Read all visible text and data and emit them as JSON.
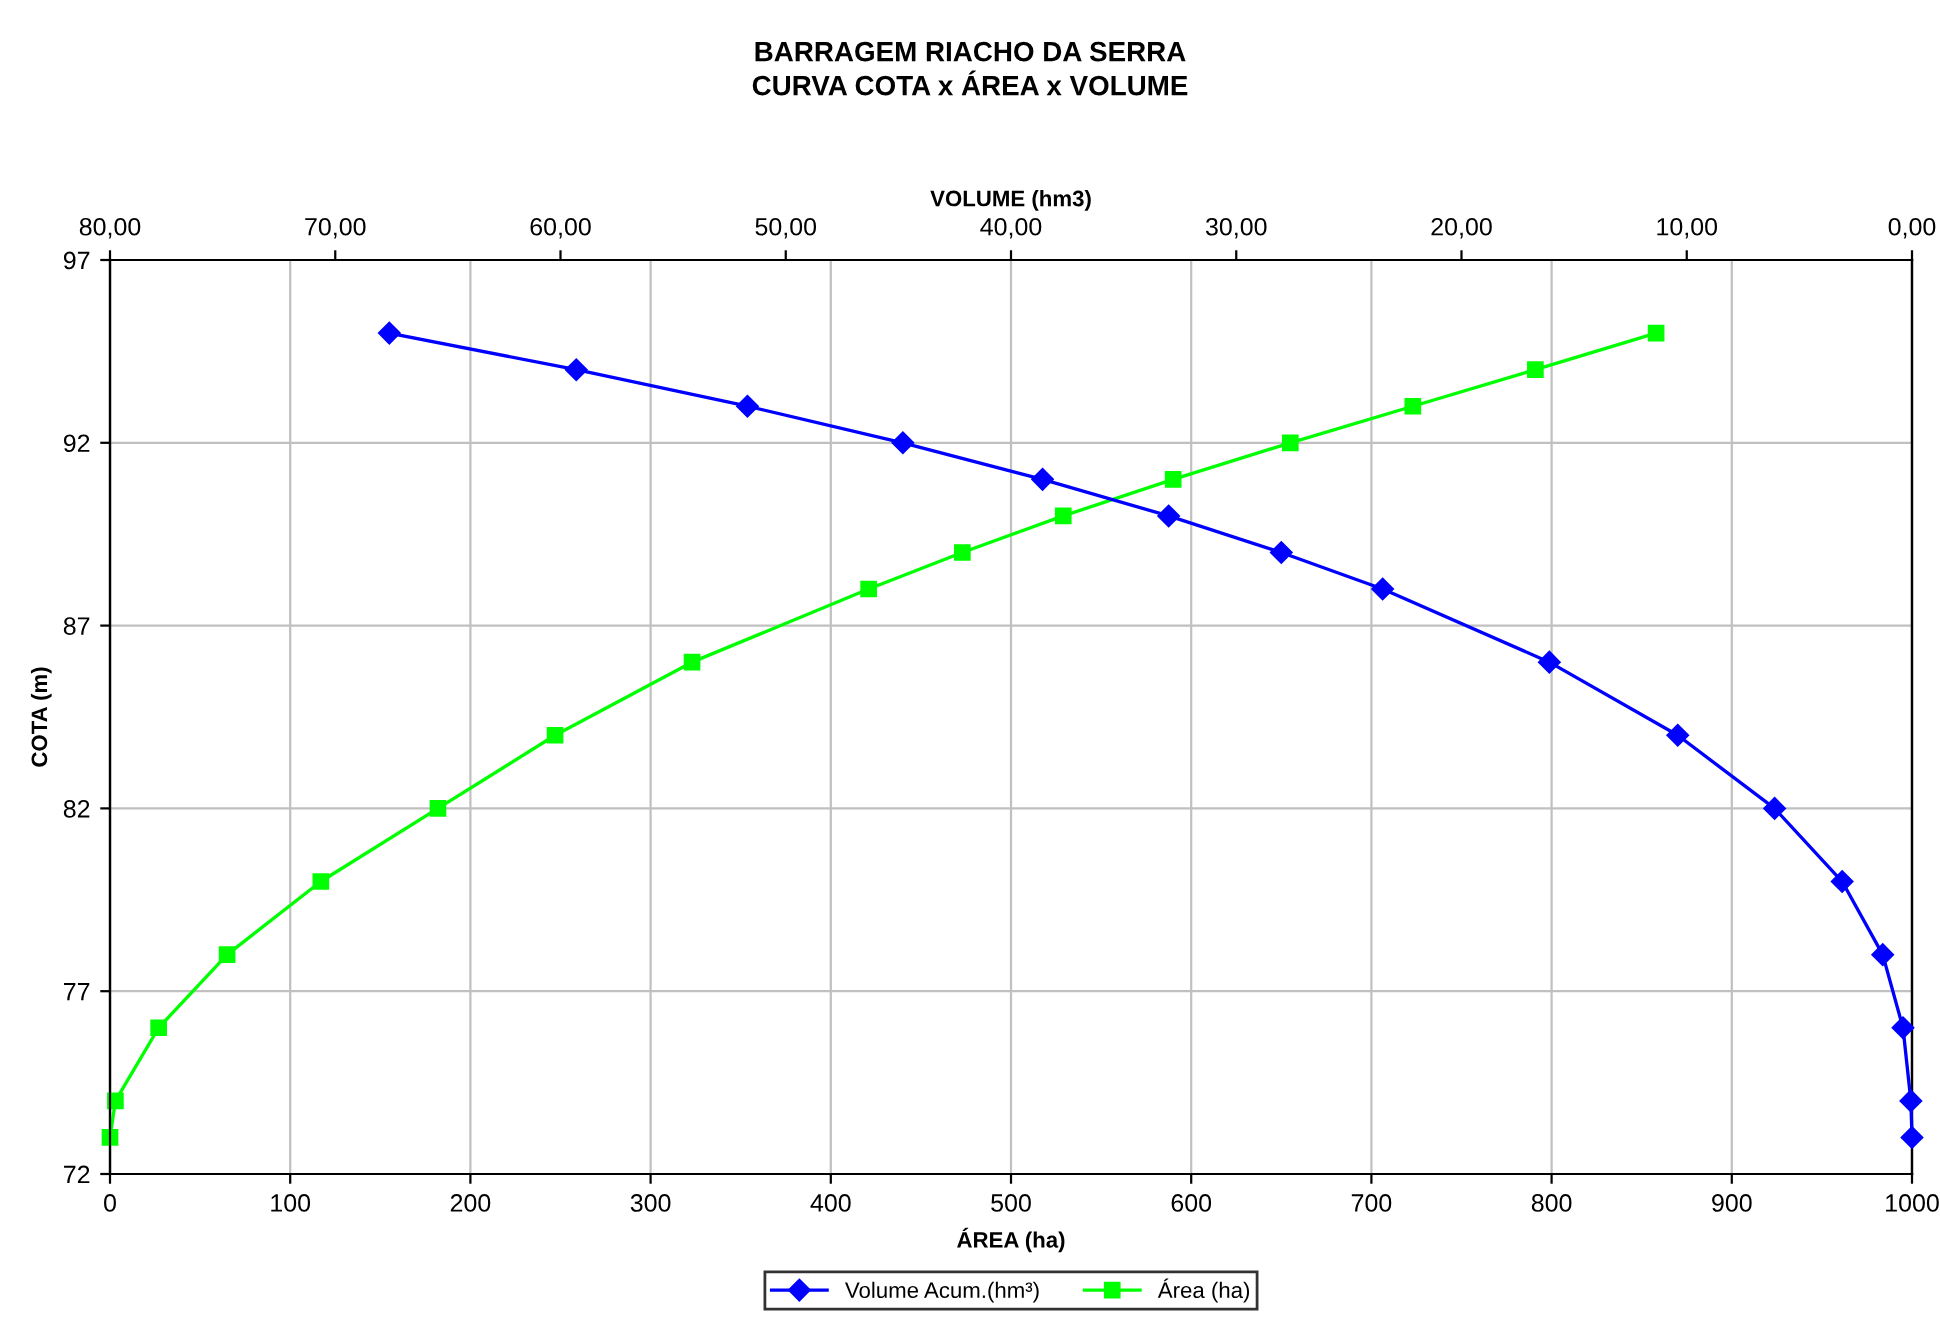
{
  "chart_data": {
    "type": "line",
    "title": "BARRAGEM RIACHO DA SERRA",
    "subtitle": "CURVA COTA x ÁREA x VOLUME",
    "xlabel": "ÁREA (ha)",
    "x2label": "VOLUME (hm3)",
    "ylabel": "COTA (m)",
    "xlim": [
      0,
      1000
    ],
    "xticks": [
      0,
      100,
      200,
      300,
      400,
      500,
      600,
      700,
      800,
      900,
      1000
    ],
    "x2lim": [
      80,
      0
    ],
    "x2ticks": [
      {
        "value": 80,
        "label": "80,00"
      },
      {
        "value": 70,
        "label": "70,00"
      },
      {
        "value": 60,
        "label": "60,00"
      },
      {
        "value": 50,
        "label": "50,00"
      },
      {
        "value": 40,
        "label": "40,00"
      },
      {
        "value": 30,
        "label": "30,00"
      },
      {
        "value": 20,
        "label": "20,00"
      },
      {
        "value": 10,
        "label": "10,00"
      },
      {
        "value": 0,
        "label": "0,00"
      }
    ],
    "ylim": [
      72,
      97
    ],
    "yticks": [
      72,
      77,
      82,
      87,
      92,
      97
    ],
    "grid": true,
    "legend": "bottom",
    "series": [
      {
        "name": "Volume Acum.(hm³)",
        "color": "#0000ff",
        "axis": "x2",
        "marker": "diamond",
        "x": [
          67.6,
          59.3,
          51.7,
          44.8,
          38.6,
          33.0,
          28.0,
          23.5,
          16.1,
          10.4,
          6.1,
          3.1,
          1.3,
          0.4,
          0.05,
          0.0
        ],
        "values": [
          95,
          94,
          93,
          92,
          91,
          90,
          89,
          88,
          86,
          84,
          82,
          80,
          78,
          76,
          74,
          73
        ]
      },
      {
        "name": "Área (ha)",
        "color": "#00ff00",
        "marker": "square",
        "x": [
          858,
          791,
          723,
          655,
          590,
          529,
          473,
          421,
          323,
          247,
          182,
          117,
          65,
          27,
          3,
          0
        ],
        "values": [
          95,
          94,
          93,
          92,
          91,
          90,
          89,
          88,
          86,
          84,
          82,
          80,
          78,
          76,
          74,
          73
        ]
      }
    ]
  }
}
